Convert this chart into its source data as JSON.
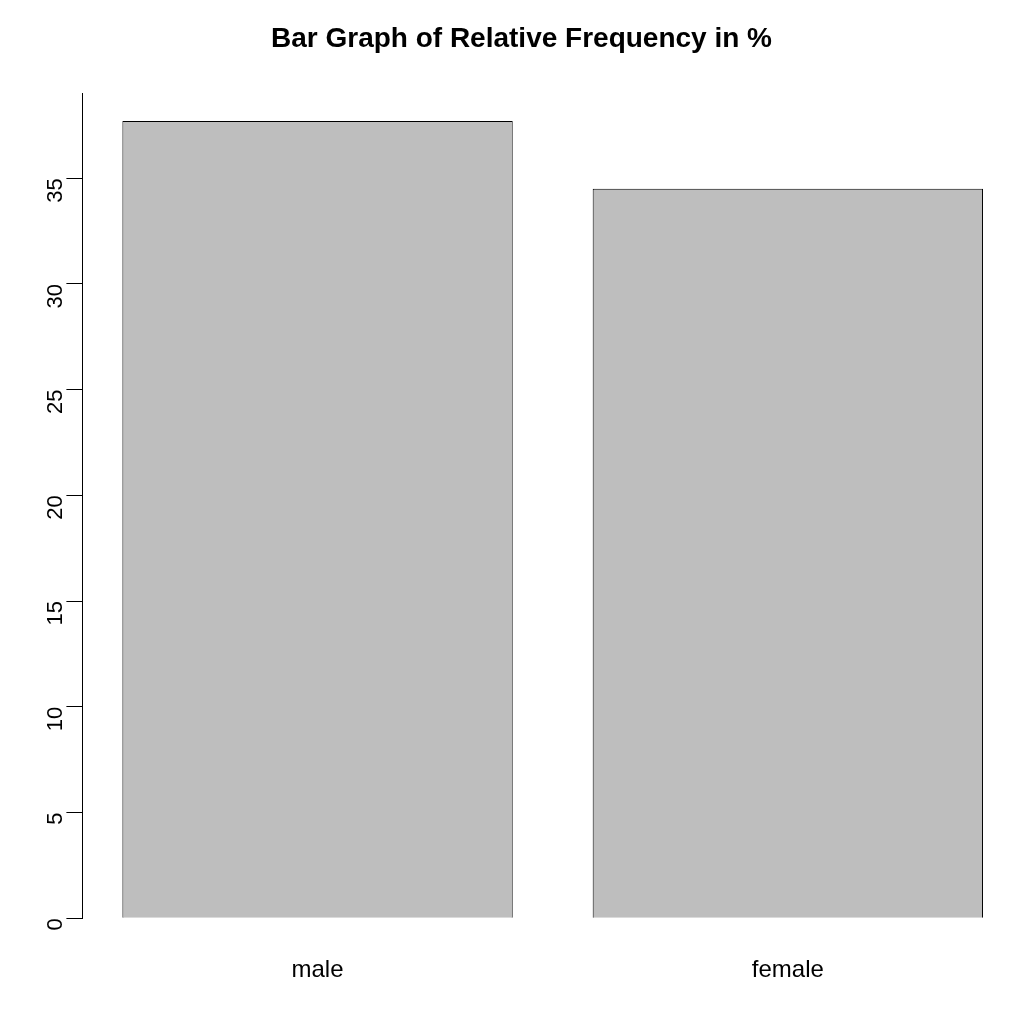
{
  "chart_data": {
    "type": "bar",
    "title": "Bar Graph of Relative Frequency in %",
    "categories": [
      "male",
      "female"
    ],
    "values": [
      37.7,
      34.5
    ],
    "color": "#bebebe",
    "ylim": [
      0,
      39
    ],
    "yticks": [
      0,
      5,
      10,
      15,
      20,
      25,
      30,
      35
    ],
    "grid": false,
    "legend": false
  }
}
